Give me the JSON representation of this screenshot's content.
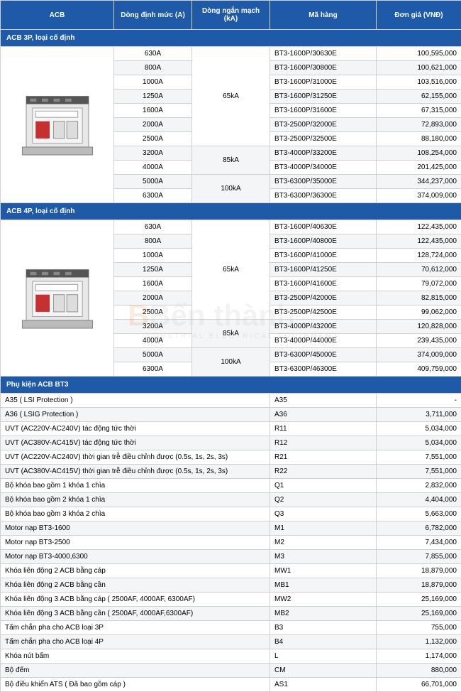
{
  "header": {
    "acb": "ACB",
    "rated": "Dòng định mức (A)",
    "short": "Dòng ngắn mạch (kA)",
    "code": "Mã hàng",
    "price": "Đơn giá (VNĐ)"
  },
  "sections": {
    "s3p": "ACB 3P, loại cố định",
    "s4p": "ACB 4P, loại cố định",
    "acc": "Phụ kiện ACB BT3"
  },
  "shortGroups3p": {
    "g1": "65kA",
    "g2": "85kA",
    "g3": "100kA"
  },
  "rows3p": [
    {
      "rated": "630A",
      "code": "BT3-1600P/30630E",
      "price": "100,595,000"
    },
    {
      "rated": "800A",
      "code": "BT3-1600P/30800E",
      "price": "100,621,000"
    },
    {
      "rated": "1000A",
      "code": "BT3-1600P/31000E",
      "price": "103,516,000"
    },
    {
      "rated": "1250A",
      "code": "BT3-1600P/31250E",
      "price": "62,155,000"
    },
    {
      "rated": "1600A",
      "code": "BT3-1600P/31600E",
      "price": "67,315,000"
    },
    {
      "rated": "2000A",
      "code": "BT3-2500P/32000E",
      "price": "72,893,000"
    },
    {
      "rated": "2500A",
      "code": "BT3-2500P/32500E",
      "price": "88,180,000"
    },
    {
      "rated": "3200A",
      "code": "BT3-4000P/33200E",
      "price": "108,254,000"
    },
    {
      "rated": "4000A",
      "code": "BT3-4000P/34000E",
      "price": "201,425,000"
    },
    {
      "rated": "5000A",
      "code": "BT3-6300P/35000E",
      "price": "344,237,000"
    },
    {
      "rated": "6300A",
      "code": "BT3-6300P/36300E",
      "price": "374,009,000"
    }
  ],
  "shortGroups4p": {
    "g1": "65kA",
    "g2": "85kA",
    "g3": "100kA"
  },
  "rows4p": [
    {
      "rated": "630A",
      "code": "BT3-1600P/40630E",
      "price": "122,435,000"
    },
    {
      "rated": "800A",
      "code": "BT3-1600P/40800E",
      "price": "122,435,000"
    },
    {
      "rated": "1000A",
      "code": "BT3-1600P/41000E",
      "price": "128,724,000"
    },
    {
      "rated": "1250A",
      "code": "BT3-1600P/41250E",
      "price": "70,612,000"
    },
    {
      "rated": "1600A",
      "code": "BT3-1600P/41600E",
      "price": "79,072,000"
    },
    {
      "rated": "2000A",
      "code": "BT3-2500P/42000E",
      "price": "82,815,000"
    },
    {
      "rated": "2500A",
      "code": "BT3-2500P/42500E",
      "price": "99,062,000"
    },
    {
      "rated": "3200A",
      "code": "BT3-4000P/43200E",
      "price": "120,828,000"
    },
    {
      "rated": "4000A",
      "code": "BT3-4000P/44000E",
      "price": "239,435,000"
    },
    {
      "rated": "5000A",
      "code": "BT3-6300P/45000E",
      "price": "374,009,000"
    },
    {
      "rated": "6300A",
      "code": "BT3-6300P/46300E",
      "price": "409,759,000"
    }
  ],
  "accessories": [
    {
      "desc": "A35 ( LSI Protection )",
      "code": "A35",
      "price": "-"
    },
    {
      "desc": "A36 ( LSIG Protection )",
      "code": "A36",
      "price": "3,711,000"
    },
    {
      "desc": "UVT (AC220V-AC240V) tác động tức thời",
      "code": "R11",
      "price": "5,034,000"
    },
    {
      "desc": "UVT (AC380V-AC415V) tác động tức thời",
      "code": "R12",
      "price": "5,034,000"
    },
    {
      "desc": "UVT (AC220V-AC240V) thời gian trễ điều chỉnh được (0.5s, 1s, 2s, 3s)",
      "code": "R21",
      "price": "7,551,000"
    },
    {
      "desc": "UVT (AC380V-AC415V) thời gian trễ điều chỉnh được (0.5s, 1s, 2s, 3s)",
      "code": "R22",
      "price": "7,551,000"
    },
    {
      "desc": "Bộ khóa bao gồm 1 khóa 1 chìa",
      "code": "Q1",
      "price": "2,832,000"
    },
    {
      "desc": "Bộ khóa bao gồm 2 khóa 1 chìa",
      "code": "Q2",
      "price": "4,404,000"
    },
    {
      "desc": "Bộ khóa bao gồm 3 khóa 2 chìa",
      "code": "Q3",
      "price": "5,663,000"
    },
    {
      "desc": "Motor nạp BT3-1600",
      "code": "M1",
      "price": "6,782,000"
    },
    {
      "desc": "Motor nạp BT3-2500",
      "code": "M2",
      "price": "7,434,000"
    },
    {
      "desc": "Motor nạp BT3-4000,6300",
      "code": "M3",
      "price": "7,855,000"
    },
    {
      "desc": "Khóa liên động 2 ACB bằng cáp",
      "code": "MW1",
      "price": "18,879,000"
    },
    {
      "desc": "Khóa liên động 2 ACB bằng cần",
      "code": "MB1",
      "price": "18,879,000"
    },
    {
      "desc": "Khóa liên động 3 ACB bằng cáp ( 2500AF, 4000AF, 6300AF)",
      "code": "MW2",
      "price": "25,169,000"
    },
    {
      "desc": "Khóa liên động 3 ACB bằng cần ( 2500AF, 4000AF,6300AF)",
      "code": "MB2",
      "price": "25,169,000"
    },
    {
      "desc": "Tấm chắn pha cho ACB loại 3P",
      "code": "B3",
      "price": "755,000"
    },
    {
      "desc": "Tấm chắn pha cho ACB loại 4P",
      "code": "B4",
      "price": "1,132,000"
    },
    {
      "desc": "Khóa nút bấm",
      "code": "L",
      "price": "1,174,000"
    },
    {
      "desc": "Bộ đếm",
      "code": "CM",
      "price": "880,000"
    },
    {
      "desc": "Bộ điều khiển ATS ( Đã bao gồm cáp )",
      "code": "AS1",
      "price": "66,701,000"
    }
  ],
  "watermark": {
    "text": "Bến thành",
    "sub": "INDUSTRIAL ELECTRICAL EQUIPMENT"
  },
  "colors": {
    "headerBg": "#1e5aa8",
    "headerText": "#ffffff",
    "border": "#d0d0d0",
    "stripe": "#f3f5f7"
  }
}
